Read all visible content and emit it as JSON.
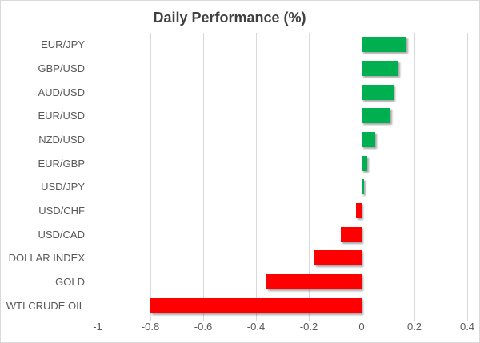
{
  "chart_data": {
    "type": "bar",
    "orientation": "horizontal",
    "title": "Daily Performance (%)",
    "categories": [
      "EUR/JPY",
      "GBP/USD",
      "AUD/USD",
      "EUR/USD",
      "NZD/USD",
      "EUR/GBP",
      "USD/JPY",
      "USD/CHF",
      "USD/CAD",
      "DOLLAR INDEX",
      "GOLD",
      "WTI CRUDE OIL"
    ],
    "values": [
      0.17,
      0.14,
      0.12,
      0.11,
      0.05,
      0.02,
      0.01,
      -0.02,
      -0.08,
      -0.18,
      -0.36,
      -0.8
    ],
    "xlim": [
      -1,
      0.4
    ],
    "xticks": [
      -1,
      -0.8,
      -0.6,
      -0.4,
      -0.2,
      0,
      0.2,
      0.4
    ],
    "xtick_labels": [
      "-1",
      "-0.8",
      "-0.6",
      "-0.4",
      "-0.2",
      "0",
      "0.2",
      "0.4"
    ],
    "grid": "vertical",
    "legend": "none",
    "colors": {
      "positive": "#00B050",
      "negative": "#FF0000",
      "gridline": "#D9D9D9",
      "tick_label": "#595959",
      "title": "#404040",
      "background": "#FFFFFF",
      "border": "#D9D9D9"
    }
  }
}
